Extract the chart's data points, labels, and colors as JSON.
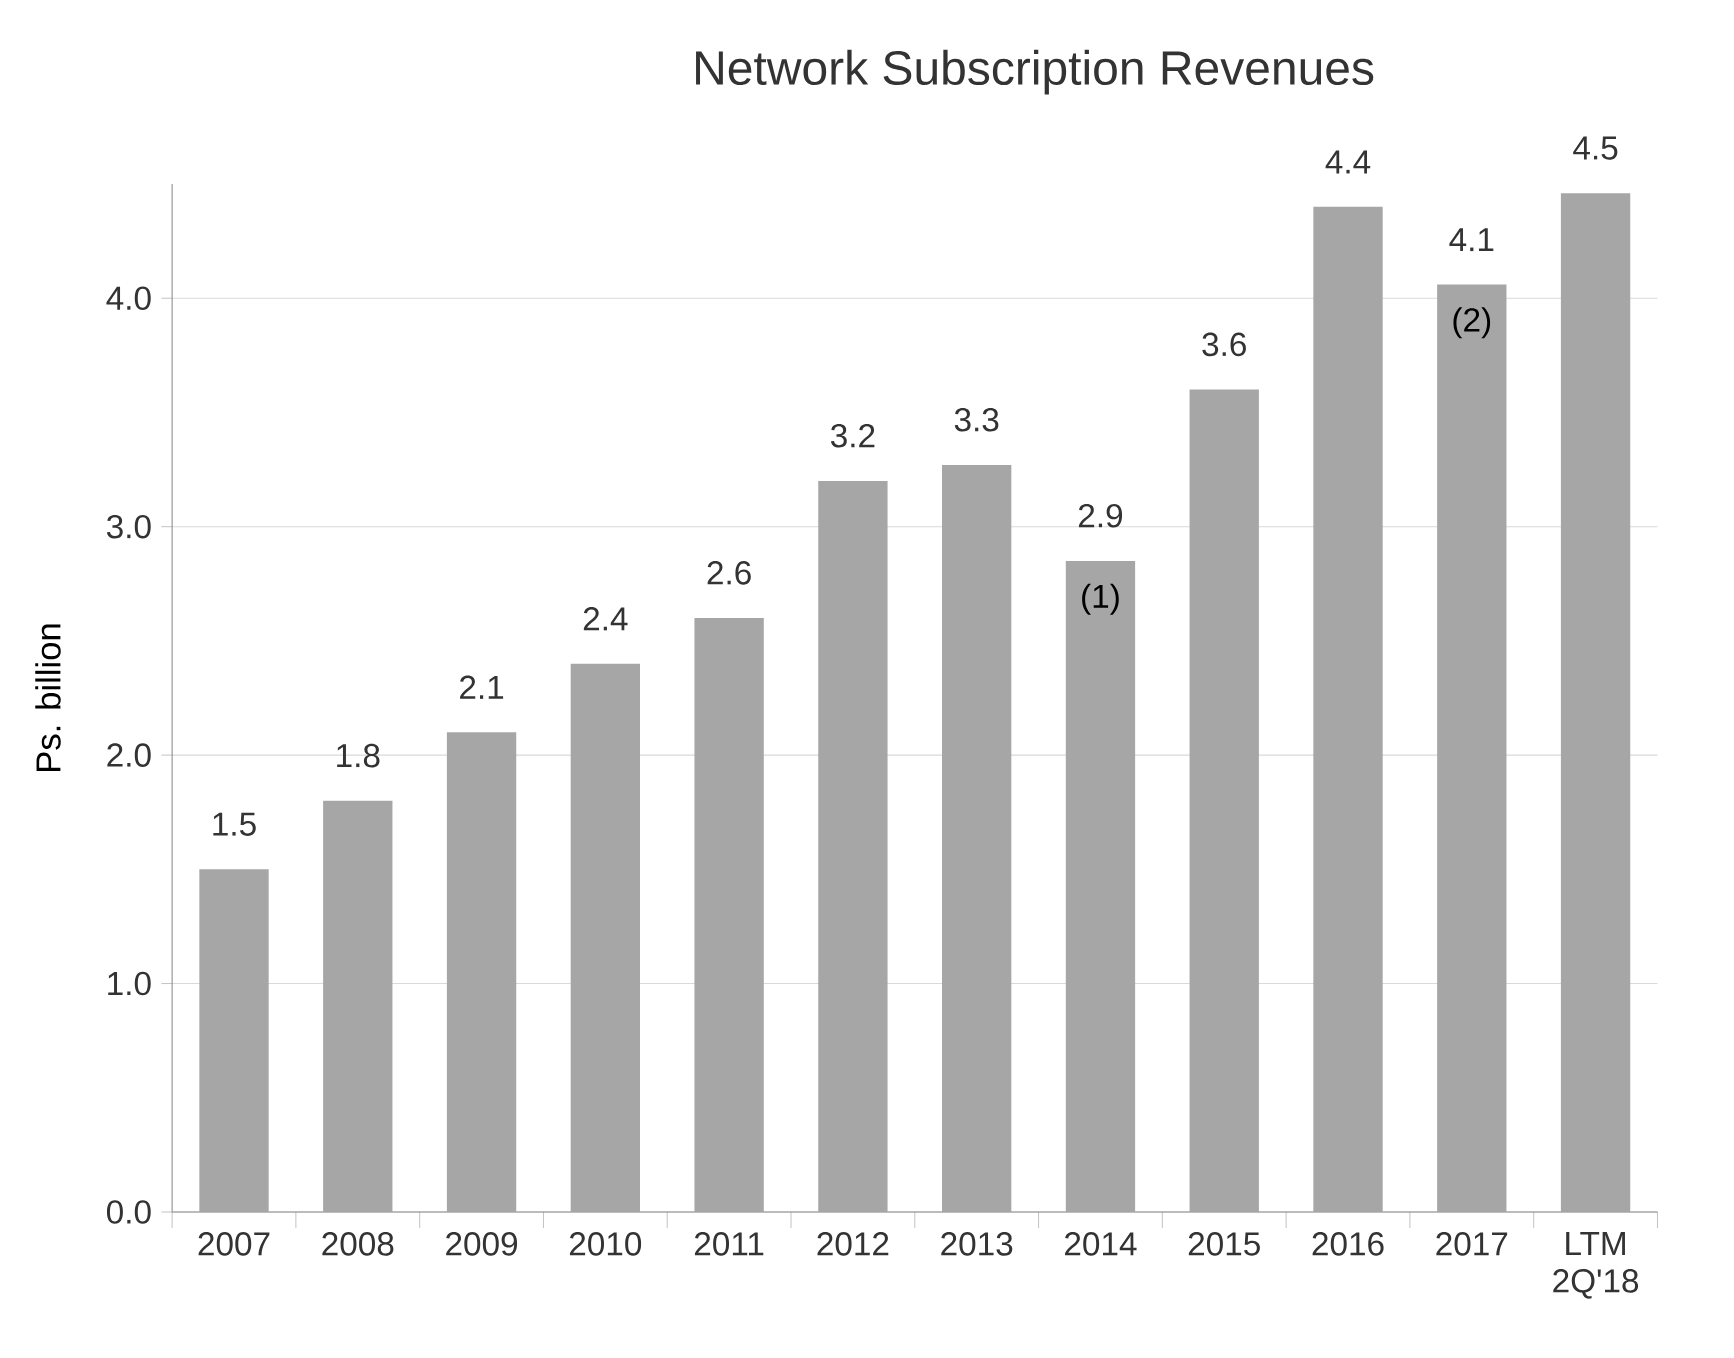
{
  "chart_data": {
    "type": "bar",
    "title": "Network Subscription Revenues",
    "ylabel": "Ps. billion",
    "categories": [
      "2007",
      "2008",
      "2009",
      "2010",
      "2011",
      "2012",
      "2013",
      "2014",
      "2015",
      "2016",
      "2017",
      "LTM 2Q'18"
    ],
    "values": [
      1.5,
      1.8,
      2.1,
      2.4,
      2.6,
      3.2,
      3.27,
      2.85,
      3.6,
      4.4,
      4.06,
      4.46
    ],
    "value_labels": [
      "1.5",
      "1.8",
      "2.1",
      "2.4",
      "2.6",
      "3.2",
      "3.3",
      "2.9",
      "3.6",
      "4.4",
      "4.1",
      "4.5"
    ],
    "color": "#a6a6a6",
    "ylim": [
      0,
      4.5
    ],
    "yticks": [
      {
        "value": 0,
        "label": "0.0"
      },
      {
        "value": 1,
        "label": "1.0"
      },
      {
        "value": 2,
        "label": "2.0"
      },
      {
        "value": 3,
        "label": "3.0"
      },
      {
        "value": 4,
        "label": "4.0"
      }
    ],
    "grid": "y",
    "annotations": [
      {
        "text": "(1)",
        "x": "2014",
        "y": 2.85
      },
      {
        "text": "(2)",
        "x": "2017",
        "y": 4.06
      }
    ]
  }
}
